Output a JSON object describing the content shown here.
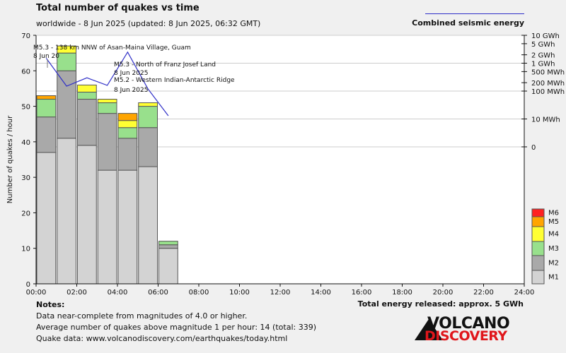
{
  "header": {
    "title": "Total number of quakes vs time",
    "subtitle": "worldwide -  8 Jun 2025 (updated: 8 Jun 2025, 06:32 GMT)",
    "energy_legend": "Combined seismic energy"
  },
  "colors": {
    "M1": "#d3d3d3",
    "M2": "#a9a9a9",
    "M3": "#98e08c",
    "M4": "#ffff33",
    "M5": "#ffa500",
    "M6": "#ff2020",
    "energy_line": "#3030c8"
  },
  "chart_data": {
    "type": "bar",
    "stacked": true,
    "ylabel": "Number of quakes / hour",
    "ylim": [
      0,
      70
    ],
    "yticks": [
      "0",
      "10",
      "20",
      "30",
      "40",
      "50",
      "60",
      "70"
    ],
    "xlim": [
      0,
      24
    ],
    "xticks": [
      "00:00",
      "02:00",
      "04:00",
      "06:00",
      "08:00",
      "10:00",
      "12:00",
      "14:00",
      "16:00",
      "18:00",
      "20:00",
      "22:00",
      "24:00"
    ],
    "hours": [
      0,
      1,
      2,
      3,
      4,
      5,
      6
    ],
    "series": [
      {
        "name": "M1",
        "values": [
          37,
          41,
          39,
          32,
          32,
          33,
          10
        ]
      },
      {
        "name": "M2",
        "values": [
          10,
          19,
          13,
          16,
          9,
          11,
          1
        ]
      },
      {
        "name": "M3",
        "values": [
          5,
          5,
          2,
          3,
          3,
          6,
          1
        ]
      },
      {
        "name": "M4",
        "values": [
          0,
          2,
          2,
          1,
          2,
          1,
          0
        ]
      },
      {
        "name": "M5",
        "values": [
          1,
          0,
          0,
          0,
          2,
          0,
          0
        ]
      },
      {
        "name": "M6",
        "values": [
          0,
          0,
          0,
          0,
          0,
          0,
          0
        ]
      }
    ],
    "legend": [
      "M6",
      "M5",
      "M4",
      "M3",
      "M2",
      "M1"
    ],
    "legend_position": "right",
    "energy_axis": {
      "ticks": [
        {
          "label": "10 GWh",
          "value": 10000000
        },
        {
          "label": "5 GWh",
          "value": 5000000
        },
        {
          "label": "2 GWh",
          "value": 2000000
        },
        {
          "label": "1 GWh",
          "value": 1000000
        },
        {
          "label": "500 MWh",
          "value": 500000
        },
        {
          "label": "200 MWh",
          "value": 200000
        },
        {
          "label": "100 MWh",
          "value": 100000
        },
        {
          "label": "10 MWh",
          "value": 10000
        },
        {
          "label": "0",
          "value": 1000
        }
      ],
      "gridlines": [
        10000000,
        1000000,
        100000,
        10000,
        1000
      ]
    },
    "energy_series": {
      "x": [
        0.5,
        1.5,
        2.5,
        3.5,
        4.5,
        5.5,
        6.5
      ],
      "y": [
        1500000,
        150000,
        300000,
        160000,
        2500000,
        120000,
        13000
      ]
    },
    "annotations": [
      {
        "line1": "M5.3 - 138 km NNW of Asan-Maina Village, Guam",
        "line2": "8 Jun 20"
      },
      {
        "line1": "M5.3 - North of Franz Josef Land",
        "line2": "8 Jun 2025"
      },
      {
        "line1": "M5.2 - Western Indian-Antarctic Ridge",
        "line2": "8 Jun 2025"
      }
    ]
  },
  "notes": {
    "heading": "Notes:",
    "line1": "Data near-complete from magnitudes of 4.0 or higher.",
    "line2": "Average number of quakes above magnitude 1 per hour: 14 (total: 339)",
    "line3": "Quake data: www.volcanodiscovery.com/earthquakes/today.html"
  },
  "total_energy": "Total energy released: approx. 5 GWh",
  "logo": {
    "line1": "VOLCANO",
    "line2": "DISCOVERY"
  }
}
